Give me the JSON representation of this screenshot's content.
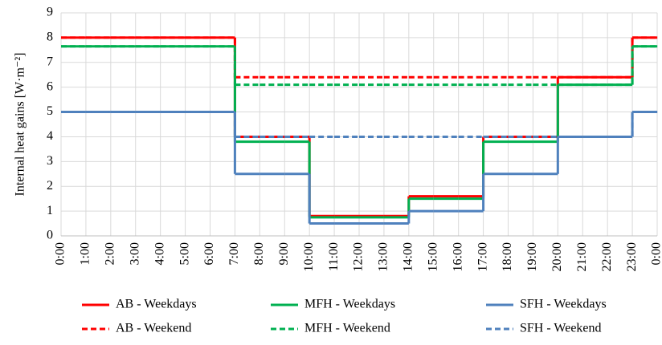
{
  "chart_data": {
    "type": "step-line",
    "y_label": "Internal heat gains [W·m⁻²]",
    "categories": [
      "0:00",
      "1:00",
      "2:00",
      "3:00",
      "4:00",
      "5:00",
      "6:00",
      "7:00",
      "8:00",
      "9:00",
      "10:00",
      "11:00",
      "12:00",
      "13:00",
      "14:00",
      "15:00",
      "16:00",
      "17:00",
      "18:00",
      "19:00",
      "20:00",
      "21:00",
      "22:00",
      "23:00",
      "0:00"
    ],
    "ylim": [
      0,
      9
    ],
    "yticks": [
      0,
      1,
      2,
      3,
      4,
      5,
      6,
      7,
      8,
      9
    ],
    "grid": true,
    "series": [
      {
        "name": "AB - Weekdays",
        "color": "#ff0000",
        "dash": false,
        "values": [
          8,
          8,
          8,
          8,
          8,
          8,
          8,
          4,
          4,
          4,
          0.8,
          0.8,
          0.8,
          0.8,
          1.6,
          1.6,
          1.6,
          4,
          4,
          4,
          6.4,
          6.4,
          6.4,
          8,
          8
        ]
      },
      {
        "name": "MFH - Weekdays",
        "color": "#00b050",
        "dash": false,
        "values": [
          7.65,
          7.65,
          7.65,
          7.65,
          7.65,
          7.65,
          7.65,
          3.8,
          3.8,
          3.8,
          0.75,
          0.75,
          0.75,
          0.75,
          1.5,
          1.5,
          1.5,
          3.8,
          3.8,
          3.8,
          6.1,
          6.1,
          6.1,
          7.65,
          7.65
        ]
      },
      {
        "name": "SFH - Weekdays",
        "color": "#4f81bd",
        "dash": false,
        "values": [
          5,
          5,
          5,
          5,
          5,
          5,
          5,
          2.5,
          2.5,
          2.5,
          0.5,
          0.5,
          0.5,
          0.5,
          1,
          1,
          1,
          2.5,
          2.5,
          2.5,
          4,
          4,
          4,
          5,
          5
        ]
      },
      {
        "name": "AB - Weekend",
        "color": "#ff0000",
        "dash": true,
        "values": [
          8,
          8,
          8,
          8,
          8,
          8,
          8,
          6.4,
          6.4,
          6.4,
          6.4,
          6.4,
          6.4,
          6.4,
          6.4,
          6.4,
          6.4,
          6.4,
          6.4,
          6.4,
          6.4,
          6.4,
          6.4,
          8,
          8
        ]
      },
      {
        "name": "MFH - Weekend",
        "color": "#00b050",
        "dash": true,
        "values": [
          7.65,
          7.65,
          7.65,
          7.65,
          7.65,
          7.65,
          7.65,
          6.1,
          6.1,
          6.1,
          6.1,
          6.1,
          6.1,
          6.1,
          6.1,
          6.1,
          6.1,
          6.1,
          6.1,
          6.1,
          6.1,
          6.1,
          6.1,
          7.65,
          7.65
        ]
      },
      {
        "name": "SFH - Weekend",
        "color": "#4f81bd",
        "dash": true,
        "values": [
          5,
          5,
          5,
          5,
          5,
          5,
          5,
          4,
          4,
          4,
          4,
          4,
          4,
          4,
          4,
          4,
          4,
          4,
          4,
          4,
          4,
          4,
          4,
          5,
          5
        ]
      }
    ]
  }
}
